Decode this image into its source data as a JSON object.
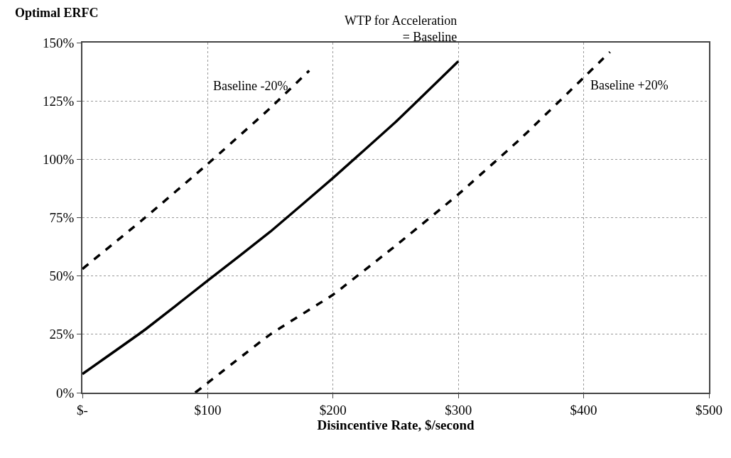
{
  "chart_data": {
    "type": "line",
    "xlabel": "Disincentive Rate, $/second",
    "ylabel": "Optimal ERFC",
    "xlim": [
      0,
      500
    ],
    "xticks": [
      {
        "value": 0,
        "label": "$-"
      },
      {
        "value": 100,
        "label": "$100"
      },
      {
        "value": 200,
        "label": "$200"
      },
      {
        "value": 300,
        "label": "$300"
      },
      {
        "value": 400,
        "label": "$400"
      },
      {
        "value": 500,
        "label": "$500"
      }
    ],
    "ylim": [
      0,
      150
    ],
    "yticks": [
      {
        "value": 0,
        "label": "0%"
      },
      {
        "value": 25,
        "label": "25%"
      },
      {
        "value": 50,
        "label": "50%"
      },
      {
        "value": 75,
        "label": "75%"
      },
      {
        "value": 100,
        "label": "100%"
      },
      {
        "value": 125,
        "label": "125%"
      },
      {
        "value": 150,
        "label": "150%"
      }
    ],
    "grid": true,
    "legend": false,
    "series": [
      {
        "name": "Baseline -20%",
        "color": "#000000",
        "line_style": "dashed",
        "x": [
          0,
          50,
          100,
          150,
          181
        ],
        "values": [
          53,
          75,
          98,
          122,
          138
        ]
      },
      {
        "name": "WTP for Acceleration\n= Baseline",
        "color": "#000000",
        "line_style": "solid",
        "x": [
          0,
          50,
          100,
          150,
          200,
          250,
          300
        ],
        "values": [
          8,
          27,
          48,
          69,
          92,
          116,
          142
        ]
      },
      {
        "name": "Baseline +20%",
        "color": "#000000",
        "line_style": "dashed",
        "x": [
          90,
          150,
          200,
          250,
          300,
          350,
          400,
          421
        ],
        "values": [
          0,
          25,
          42,
          63,
          85,
          109,
          135,
          146
        ]
      }
    ]
  }
}
